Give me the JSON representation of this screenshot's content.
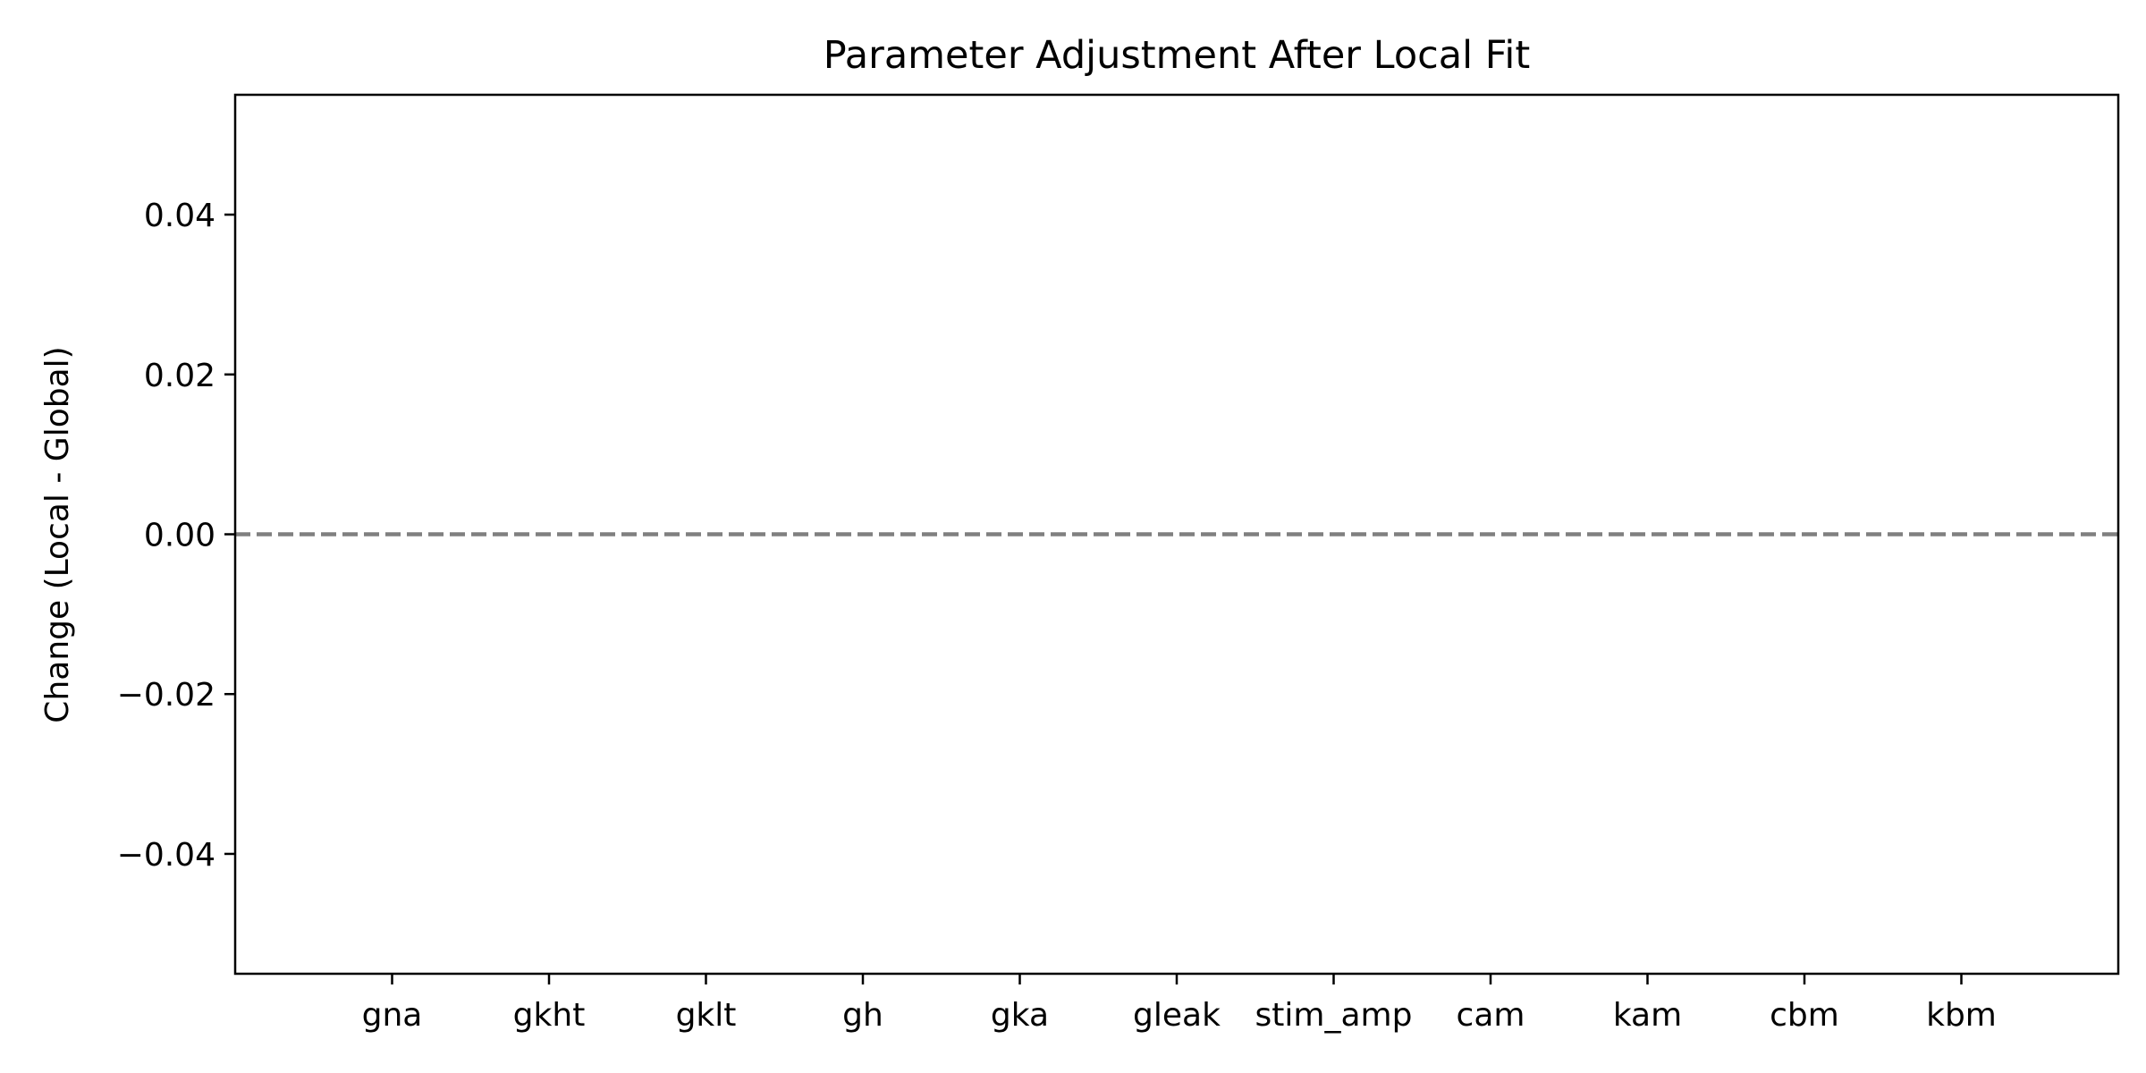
{
  "chart_data": {
    "type": "bar",
    "title": "Parameter Adjustment After Local Fit",
    "xlabel": "",
    "ylabel": "Change (Local - Global)",
    "categories": [
      "gna",
      "gkht",
      "gklt",
      "gh",
      "gka",
      "gleak",
      "stim_amp",
      "cam",
      "kam",
      "cbm",
      "kbm"
    ],
    "values": [
      0,
      0,
      0,
      0,
      0,
      0,
      0,
      0,
      0,
      0,
      0
    ],
    "ylim": [
      -0.055,
      0.055
    ],
    "yticks": [
      0.04,
      0.02,
      0.0,
      -0.02,
      -0.04
    ],
    "ytick_labels": [
      "0.04",
      "0.02",
      "0.00",
      "−0.02",
      "−0.04"
    ],
    "reference_line": {
      "y": 0,
      "style": "dashed",
      "color": "#808080"
    },
    "bar_color": "#1f77b4",
    "grid": false
  }
}
